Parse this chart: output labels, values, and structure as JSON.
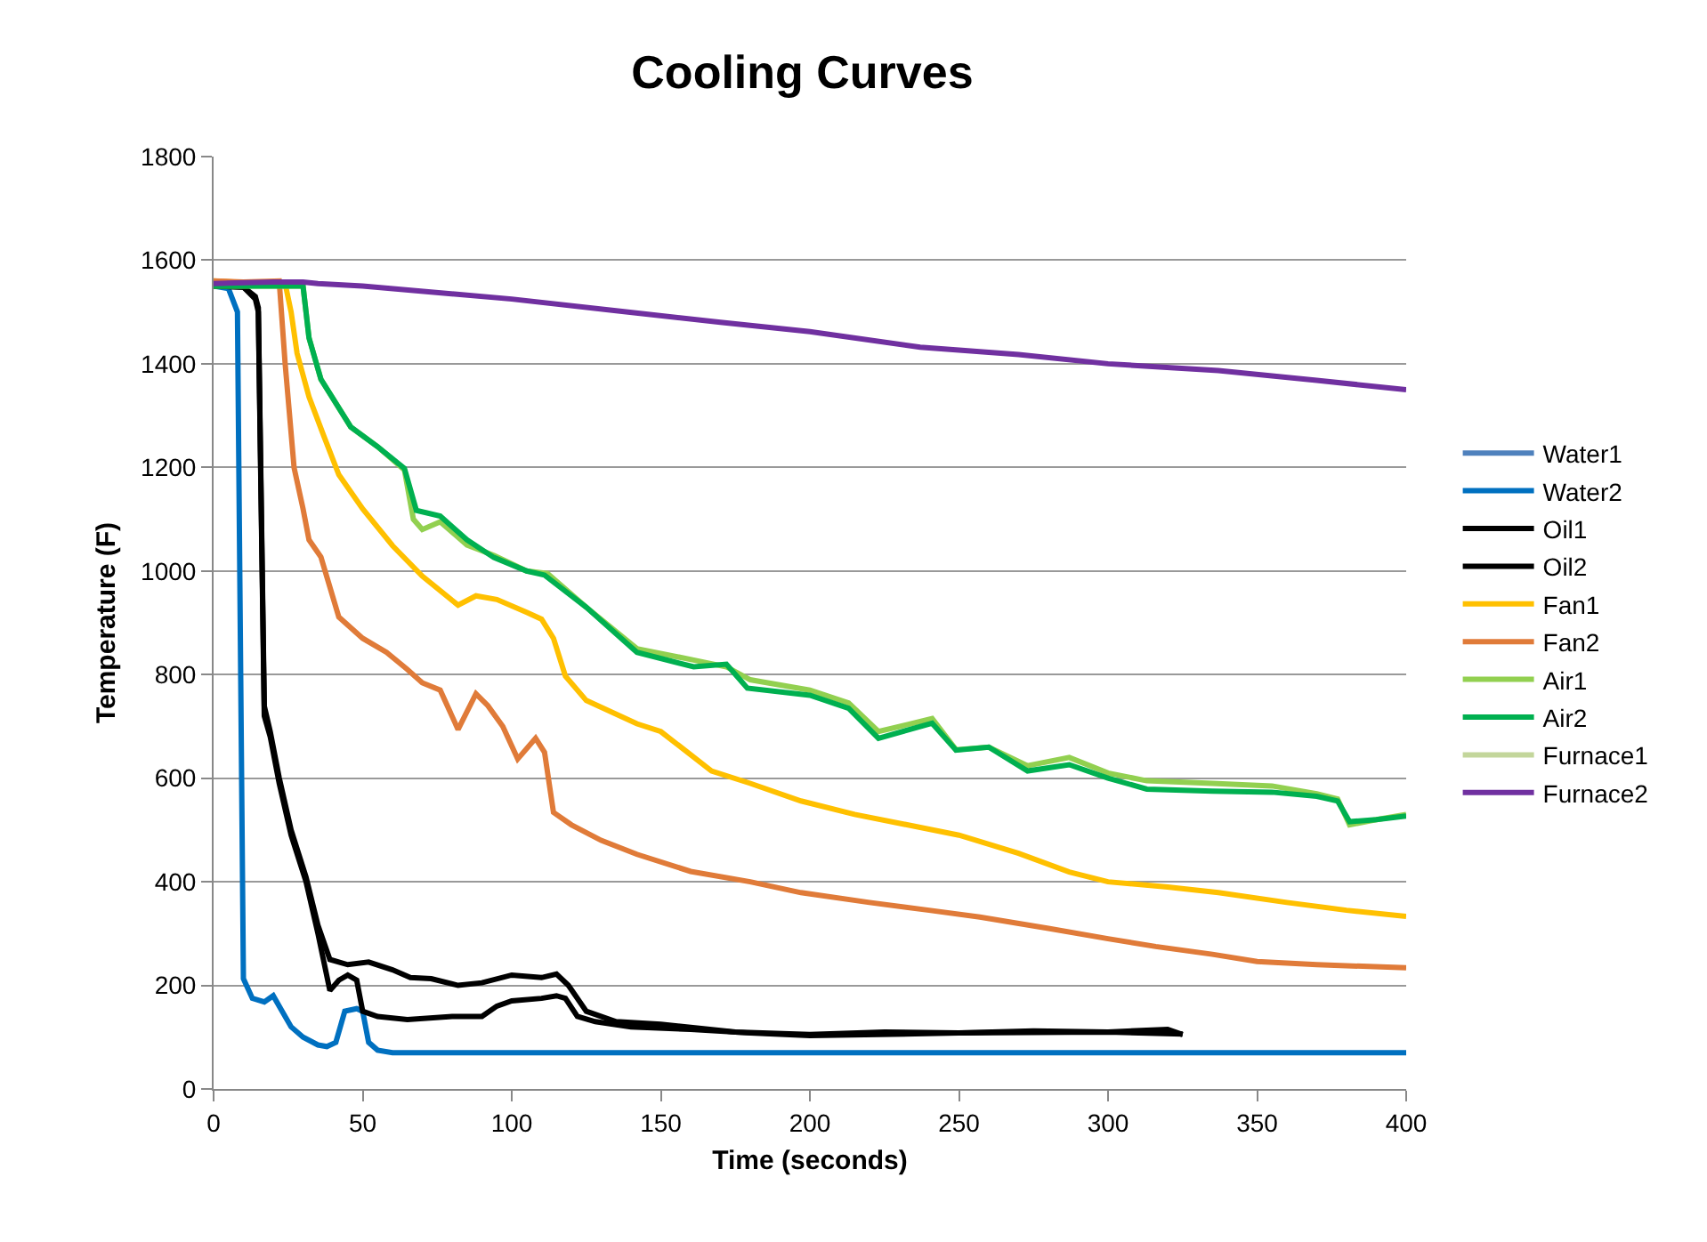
{
  "chart_data": {
    "type": "line",
    "title": "Cooling Curves",
    "xlabel": "Time (seconds)",
    "ylabel": "Temperature (F)",
    "xlim": [
      0,
      400
    ],
    "xticks": [
      0,
      50,
      100,
      150,
      200,
      250,
      300,
      350,
      400
    ],
    "ylim": [
      0,
      1800
    ],
    "yticks": [
      0,
      200,
      400,
      600,
      800,
      1000,
      1200,
      1400,
      1600,
      1800
    ],
    "grid": "y",
    "legend": "right",
    "marker": "none",
    "line_style": "solid",
    "series": [
      {
        "name": "Water1",
        "color": "#4f81bd",
        "values": [
          null
        ]
      },
      {
        "name": "Water2",
        "color": "#0070c0",
        "x": [
          0,
          5,
          8,
          10,
          13,
          17,
          20,
          23,
          26,
          30,
          35,
          38,
          41,
          44,
          48,
          50,
          52,
          55,
          60,
          100,
          200,
          300,
          400
        ],
        "values": [
          1550,
          1545,
          1500,
          213,
          175,
          168,
          180,
          150,
          120,
          100,
          85,
          82,
          90,
          150,
          155,
          150,
          90,
          75,
          70,
          70,
          70,
          70,
          70
        ]
      },
      {
        "name": "Oil1",
        "color": "#000000",
        "x": [
          0,
          10,
          14,
          15,
          17,
          19,
          22,
          26,
          31,
          35,
          39,
          45,
          52,
          60,
          66,
          73,
          82,
          90,
          100,
          110,
          115,
          119,
          125,
          135,
          150,
          175,
          200,
          225,
          250,
          275,
          300,
          320,
          325
        ],
        "values": [
          1550,
          1548,
          1530,
          1508,
          739,
          690,
          601,
          500,
          409,
          316,
          250,
          240,
          245,
          230,
          215,
          213,
          200,
          205,
          220,
          215,
          222,
          200,
          150,
          130,
          125,
          110,
          105,
          110,
          108,
          112,
          110,
          115,
          105
        ]
      },
      {
        "name": "Oil2",
        "color": "#000000",
        "x": [
          0,
          10,
          14,
          15,
          17,
          19,
          22,
          26,
          31,
          35,
          39,
          42,
          45,
          48,
          50,
          55,
          65,
          80,
          90,
          95,
          100,
          110,
          115,
          118,
          122,
          128,
          140,
          160,
          180,
          200,
          250,
          300,
          325
        ],
        "values": [
          1550,
          1548,
          1525,
          1500,
          720,
          680,
          590,
          490,
          400,
          300,
          190,
          210,
          220,
          210,
          150,
          140,
          134,
          140,
          140,
          160,
          170,
          175,
          180,
          175,
          140,
          130,
          120,
          115,
          108,
          103,
          108,
          110,
          106
        ]
      },
      {
        "name": "Fan1",
        "color": "#ffc000",
        "x": [
          0,
          15,
          24,
          26,
          28,
          32,
          37,
          42,
          50,
          60,
          70,
          82,
          88,
          95,
          105,
          110,
          114,
          118,
          125,
          142,
          150,
          167,
          180,
          197,
          215,
          237,
          250,
          270,
          287,
          300,
          320,
          337,
          360,
          380,
          400
        ],
        "values": [
          1560,
          1555,
          1555,
          1500,
          1420,
          1336,
          1260,
          1186,
          1120,
          1049,
          990,
          934,
          952,
          945,
          920,
          907,
          870,
          797,
          750,
          705,
          690,
          614,
          590,
          556,
          530,
          505,
          490,
          455,
          419,
          400,
          390,
          379,
          360,
          345,
          333
        ]
      },
      {
        "name": "Fan2",
        "color": "#e07b39",
        "x": [
          0,
          10,
          22,
          24,
          27,
          30,
          32,
          36,
          42,
          50,
          58,
          65,
          70,
          76,
          82,
          88,
          92,
          97,
          102,
          108,
          111,
          114,
          120,
          130,
          142,
          160,
          180,
          197,
          220,
          240,
          257,
          280,
          300,
          316,
          335,
          350,
          370,
          400
        ],
        "values": [
          1560,
          1558,
          1560,
          1400,
          1199,
          1120,
          1060,
          1027,
          911,
          870,
          843,
          810,
          784,
          770,
          694,
          763,
          740,
          700,
          637,
          677,
          650,
          534,
          510,
          480,
          453,
          420,
          400,
          379,
          360,
          345,
          332,
          310,
          290,
          275,
          260,
          246,
          240,
          234
        ]
      },
      {
        "name": "Air1",
        "color": "#92d050",
        "x": [
          0,
          10,
          20,
          30,
          32,
          36,
          46,
          55,
          64,
          67,
          70,
          76,
          85,
          94,
          105,
          112,
          125,
          142,
          161,
          172,
          180,
          200,
          213,
          223,
          241,
          249,
          260,
          273,
          287,
          300,
          313,
          335,
          355,
          370,
          377,
          381,
          390,
          400
        ],
        "values": [
          1550,
          1550,
          1550,
          1550,
          1450,
          1370,
          1278,
          1240,
          1195,
          1100,
          1080,
          1095,
          1050,
          1030,
          1000,
          995,
          930,
          850,
          828,
          815,
          790,
          770,
          745,
          690,
          715,
          655,
          660,
          624,
          640,
          610,
          595,
          590,
          585,
          570,
          560,
          510,
          520,
          530
        ]
      },
      {
        "name": "Air2",
        "color": "#00b050",
        "x": [
          0,
          10,
          20,
          30,
          32,
          36,
          46,
          55,
          64,
          68,
          76,
          85,
          94,
          105,
          111,
          125,
          142,
          161,
          172,
          179,
          200,
          213,
          223,
          241,
          249,
          260,
          273,
          287,
          300,
          313,
          335,
          355,
          370,
          377,
          381,
          390,
          400
        ],
        "values": [
          1550,
          1550,
          1550,
          1550,
          1450,
          1370,
          1278,
          1240,
          1198,
          1117,
          1106,
          1060,
          1026,
          1000,
          992,
          930,
          843,
          815,
          820,
          774,
          760,
          735,
          677,
          706,
          654,
          660,
          614,
          626,
          600,
          579,
          575,
          573,
          565,
          556,
          516,
          520,
          527
        ]
      },
      {
        "name": "Furnace1",
        "color": "#c3d69b",
        "values": [
          null
        ]
      },
      {
        "name": "Furnace2",
        "color": "#7030a0",
        "x": [
          0,
          20,
          30,
          35,
          50,
          100,
          137,
          170,
          200,
          237,
          270,
          300,
          337,
          370,
          400
        ],
        "values": [
          1555,
          1558,
          1558,
          1555,
          1550,
          1525,
          1501,
          1480,
          1462,
          1432,
          1418,
          1400,
          1387,
          1368,
          1350
        ]
      }
    ]
  }
}
